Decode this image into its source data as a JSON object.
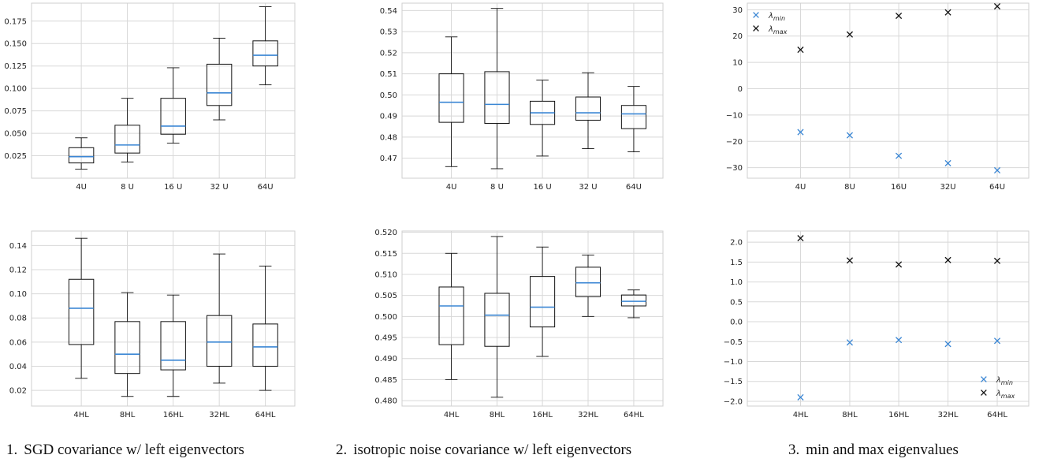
{
  "chart_data": [
    {
      "type": "box",
      "panel": "top-left",
      "categories": [
        "4U",
        "8 U",
        "16 U",
        "32 U",
        "64U"
      ],
      "ylim": [
        0.0,
        0.195
      ],
      "yticks": [
        0.025,
        0.05,
        0.075,
        0.1,
        0.125,
        0.15,
        0.175
      ],
      "ytick_labels": [
        "0.025",
        "0.050",
        "0.075",
        "0.100",
        "0.125",
        "0.150",
        "0.175"
      ],
      "boxes": [
        {
          "whislo": 0.01,
          "q1": 0.017,
          "med": 0.024,
          "q3": 0.034,
          "whishi": 0.045
        },
        {
          "whislo": 0.018,
          "q1": 0.028,
          "med": 0.037,
          "q3": 0.059,
          "whishi": 0.089
        },
        {
          "whislo": 0.039,
          "q1": 0.049,
          "med": 0.058,
          "q3": 0.089,
          "whishi": 0.123
        },
        {
          "whislo": 0.065,
          "q1": 0.081,
          "med": 0.095,
          "q3": 0.127,
          "whishi": 0.156
        },
        {
          "whislo": 0.104,
          "q1": 0.125,
          "med": 0.137,
          "q3": 0.153,
          "whishi": 0.191
        }
      ],
      "grid": true
    },
    {
      "type": "box",
      "panel": "top-middle",
      "categories": [
        "4U",
        "8 U",
        "16 U",
        "32 U",
        "64U"
      ],
      "ylim": [
        0.4605,
        0.5435
      ],
      "yticks": [
        0.47,
        0.48,
        0.49,
        0.5,
        0.51,
        0.52,
        0.53,
        0.54
      ],
      "ytick_labels": [
        "0.47",
        "0.48",
        "0.49",
        "0.50",
        "0.51",
        "0.52",
        "0.53",
        "0.54"
      ],
      "boxes": [
        {
          "whislo": 0.466,
          "q1": 0.487,
          "med": 0.4965,
          "q3": 0.51,
          "whishi": 0.5275
        },
        {
          "whislo": 0.465,
          "q1": 0.4865,
          "med": 0.4955,
          "q3": 0.511,
          "whishi": 0.541
        },
        {
          "whislo": 0.471,
          "q1": 0.486,
          "med": 0.4915,
          "q3": 0.497,
          "whishi": 0.507
        },
        {
          "whislo": 0.4745,
          "q1": 0.488,
          "med": 0.4915,
          "q3": 0.499,
          "whishi": 0.5105
        },
        {
          "whislo": 0.473,
          "q1": 0.484,
          "med": 0.491,
          "q3": 0.495,
          "whishi": 0.504
        }
      ],
      "grid": true
    },
    {
      "type": "scatter",
      "panel": "top-right",
      "categories": [
        "4U",
        "8U",
        "16U",
        "32U",
        "64U"
      ],
      "ylim": [
        -34,
        32.5
      ],
      "yticks": [
        -30,
        -20,
        -10,
        0,
        10,
        20,
        30
      ],
      "ytick_labels": [
        "−30",
        "−20",
        "−10",
        "0",
        "10",
        "20",
        "30"
      ],
      "series": [
        {
          "name": "λmin",
          "base": "λ",
          "sub": "min",
          "color": "#3a86d4",
          "values": [
            -16.5,
            -17.7,
            -25.5,
            -28.3,
            -31.0
          ]
        },
        {
          "name": "λmax",
          "base": "λ",
          "sub": "max",
          "color": "#111111",
          "values": [
            14.8,
            20.6,
            27.7,
            29.0,
            31.3
          ]
        }
      ],
      "legend": "top-left",
      "grid": true
    },
    {
      "type": "box",
      "panel": "bottom-left",
      "categories": [
        "4HL",
        "8HL",
        "16HL",
        "32HL",
        "64HL"
      ],
      "ylim": [
        0.007,
        0.152
      ],
      "yticks": [
        0.02,
        0.04,
        0.06,
        0.08,
        0.1,
        0.12,
        0.14
      ],
      "ytick_labels": [
        "0.02",
        "0.04",
        "0.06",
        "0.08",
        "0.10",
        "0.12",
        "0.14"
      ],
      "boxes": [
        {
          "whislo": 0.03,
          "q1": 0.058,
          "med": 0.088,
          "q3": 0.112,
          "whishi": 0.146
        },
        {
          "whislo": 0.015,
          "q1": 0.034,
          "med": 0.05,
          "q3": 0.077,
          "whishi": 0.101
        },
        {
          "whislo": 0.015,
          "q1": 0.037,
          "med": 0.045,
          "q3": 0.077,
          "whishi": 0.099
        },
        {
          "whislo": 0.026,
          "q1": 0.04,
          "med": 0.06,
          "q3": 0.082,
          "whishi": 0.133
        },
        {
          "whislo": 0.02,
          "q1": 0.04,
          "med": 0.056,
          "q3": 0.075,
          "whishi": 0.123
        }
      ],
      "grid": true
    },
    {
      "type": "box",
      "panel": "bottom-middle",
      "categories": [
        "4HL",
        "8HL",
        "16HL",
        "32HL",
        "64HL"
      ],
      "ylim": [
        0.4787,
        0.5203
      ],
      "yticks": [
        0.48,
        0.485,
        0.49,
        0.495,
        0.5,
        0.505,
        0.51,
        0.515,
        0.52
      ],
      "ytick_labels": [
        "0.480",
        "0.485",
        "0.490",
        "0.495",
        "0.500",
        "0.505",
        "0.510",
        "0.515",
        "0.520"
      ],
      "boxes": [
        {
          "whislo": 0.485,
          "q1": 0.4933,
          "med": 0.5025,
          "q3": 0.507,
          "whishi": 0.515
        },
        {
          "whislo": 0.4808,
          "q1": 0.4929,
          "med": 0.5003,
          "q3": 0.5055,
          "whishi": 0.519
        },
        {
          "whislo": 0.4905,
          "q1": 0.4975,
          "med": 0.5022,
          "q3": 0.5095,
          "whishi": 0.5165
        },
        {
          "whislo": 0.5,
          "q1": 0.5047,
          "med": 0.508,
          "q3": 0.5117,
          "whishi": 0.5146
        },
        {
          "whislo": 0.4997,
          "q1": 0.5025,
          "med": 0.5036,
          "q3": 0.5051,
          "whishi": 0.5063
        }
      ],
      "grid": true
    },
    {
      "type": "scatter",
      "panel": "bottom-right",
      "categories": [
        "4HL",
        "8HL",
        "16HL",
        "32HL",
        "64HL"
      ],
      "ylim": [
        -2.12,
        2.28
      ],
      "yticks": [
        -2.0,
        -1.5,
        -1.0,
        -0.5,
        0.0,
        0.5,
        1.0,
        1.5,
        2.0
      ],
      "ytick_labels": [
        "−2.0",
        "−1.5",
        "−1.0",
        "−0.5",
        "0.0",
        "0.5",
        "1.0",
        "1.5",
        "2.0"
      ],
      "series": [
        {
          "name": "λmin",
          "base": "λ",
          "sub": "min",
          "color": "#3a86d4",
          "values": [
            -1.9,
            -0.52,
            -0.46,
            -0.56,
            -0.48
          ]
        },
        {
          "name": "λmax",
          "base": "λ",
          "sub": "max",
          "color": "#111111",
          "values": [
            2.1,
            1.54,
            1.44,
            1.55,
            1.53
          ]
        }
      ],
      "legend": "bottom-right",
      "grid": true
    }
  ],
  "captions": [
    {
      "num": "1.",
      "text": "SGD covariance w/ left eigenvectors"
    },
    {
      "num": "2.",
      "text": "isotropic noise covariance w/ left eigenvectors"
    },
    {
      "num": "3.",
      "text": "min and max eigenvalues"
    }
  ],
  "colors": {
    "median": "#3a86d4",
    "box": "#111111",
    "grid": "#d8d8d8",
    "lambda_min": "#3a86d4",
    "lambda_max": "#111111"
  }
}
